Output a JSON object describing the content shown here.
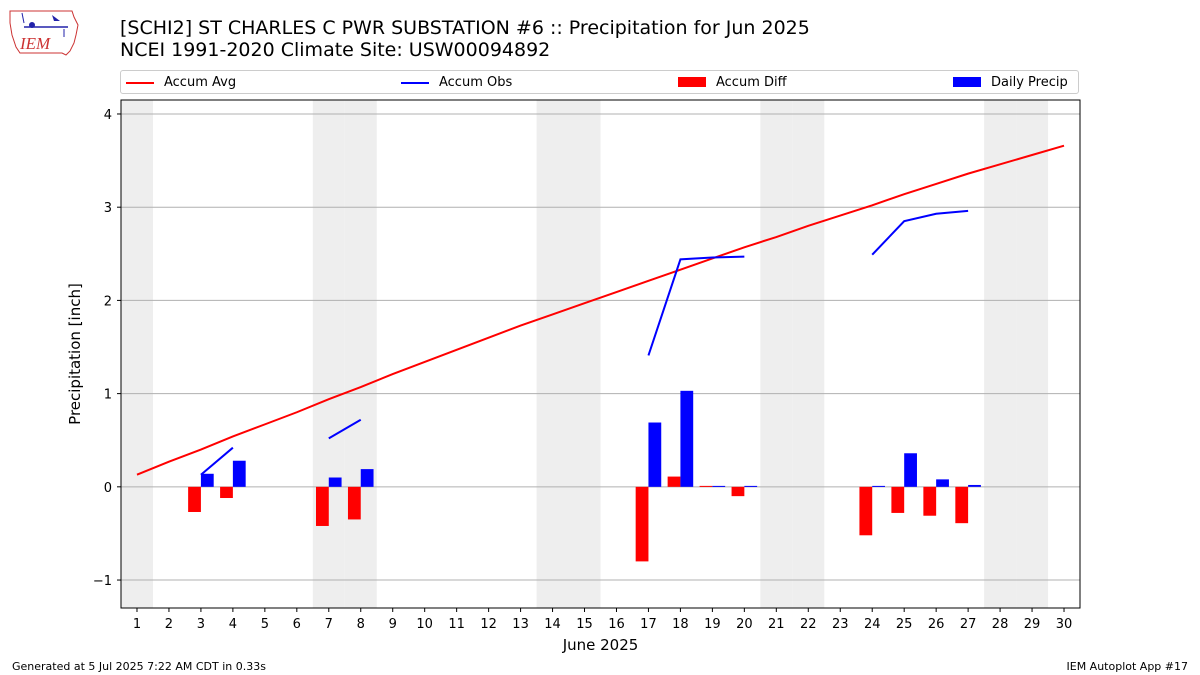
{
  "header": {
    "title_line1": "[SCHI2] ST CHARLES C PWR SUBSTATION #6 :: Precipitation for Jun 2025",
    "title_line2": "NCEI 1991-2020 Climate Site: USW00094892",
    "logo_text": "IEM"
  },
  "footer": {
    "left": "Generated at 5 Jul 2025 7:22 AM CDT in 0.33s",
    "right": "IEM Autoplot App #17"
  },
  "colors": {
    "accum_avg": "#ff0000",
    "accum_obs": "#0000ff",
    "accum_diff": "#ff0000",
    "daily_precip": "#0000ff",
    "weekend_band": "#eeeeee",
    "grid": "#b0b0b0"
  },
  "chart_data": {
    "type": "bar",
    "title": "[SCHI2] ST CHARLES C PWR SUBSTATION #6 :: Precipitation for Jun 2025",
    "subtitle": "NCEI 1991-2020 Climate Site: USW00094892",
    "xlabel": "June 2025",
    "ylabel": "Precipitation [inch]",
    "x": [
      1,
      2,
      3,
      4,
      5,
      6,
      7,
      8,
      9,
      10,
      11,
      12,
      13,
      14,
      15,
      16,
      17,
      18,
      19,
      20,
      21,
      22,
      23,
      24,
      25,
      26,
      27,
      28,
      29,
      30
    ],
    "xlim": [
      0.5,
      30.5
    ],
    "ylim": [
      -1.3,
      4.15
    ],
    "yticks": [
      -1,
      0,
      1,
      2,
      3,
      4
    ],
    "ytick_labels": [
      "−1",
      "0",
      "1",
      "2",
      "3",
      "4"
    ],
    "grid": "horizontal",
    "legend_position": "top, outside plot",
    "shaded_days": [
      1,
      7,
      8,
      14,
      15,
      21,
      22,
      28,
      29
    ],
    "series": [
      {
        "name": "Accum Avg",
        "kind": "line",
        "x": [
          1,
          2,
          3,
          4,
          5,
          6,
          7,
          8,
          9,
          10,
          11,
          12,
          13,
          14,
          15,
          16,
          17,
          18,
          19,
          20,
          21,
          22,
          23,
          24,
          25,
          26,
          27,
          28,
          29,
          30
        ],
        "values": [
          0.13,
          0.27,
          0.4,
          0.54,
          0.67,
          0.8,
          0.94,
          1.07,
          1.21,
          1.34,
          1.47,
          1.6,
          1.73,
          1.85,
          1.97,
          2.09,
          2.21,
          2.33,
          2.45,
          2.57,
          2.68,
          2.8,
          2.91,
          3.02,
          3.14,
          3.25,
          3.36,
          3.46,
          3.56,
          3.66
        ]
      },
      {
        "name": "Accum Obs",
        "kind": "line",
        "segments": [
          {
            "x": [
              3,
              4
            ],
            "values": [
              0.13,
              0.42
            ]
          },
          {
            "x": [
              7,
              8
            ],
            "values": [
              0.52,
              0.72
            ]
          },
          {
            "x": [
              17,
              18,
              19,
              20
            ],
            "values": [
              1.41,
              2.44,
              2.46,
              2.47
            ]
          },
          {
            "x": [
              24,
              25,
              26,
              27
            ],
            "values": [
              2.49,
              2.85,
              2.93,
              2.96
            ]
          }
        ]
      },
      {
        "name": "Accum Diff",
        "kind": "bar",
        "x": [
          3,
          4,
          7,
          8,
          17,
          18,
          19,
          20,
          24,
          25,
          26,
          27
        ],
        "values": [
          -0.27,
          -0.12,
          -0.42,
          -0.35,
          -0.8,
          0.11,
          0.01,
          -0.1,
          -0.52,
          -0.28,
          -0.31,
          -0.39
        ]
      },
      {
        "name": "Daily Precip",
        "kind": "bar",
        "x": [
          3,
          4,
          7,
          8,
          17,
          18,
          19,
          20,
          24,
          25,
          26,
          27
        ],
        "values": [
          0.14,
          0.28,
          0.1,
          0.19,
          0.69,
          1.03,
          0.01,
          0.01,
          0.01,
          0.36,
          0.08,
          0.02
        ]
      }
    ]
  }
}
